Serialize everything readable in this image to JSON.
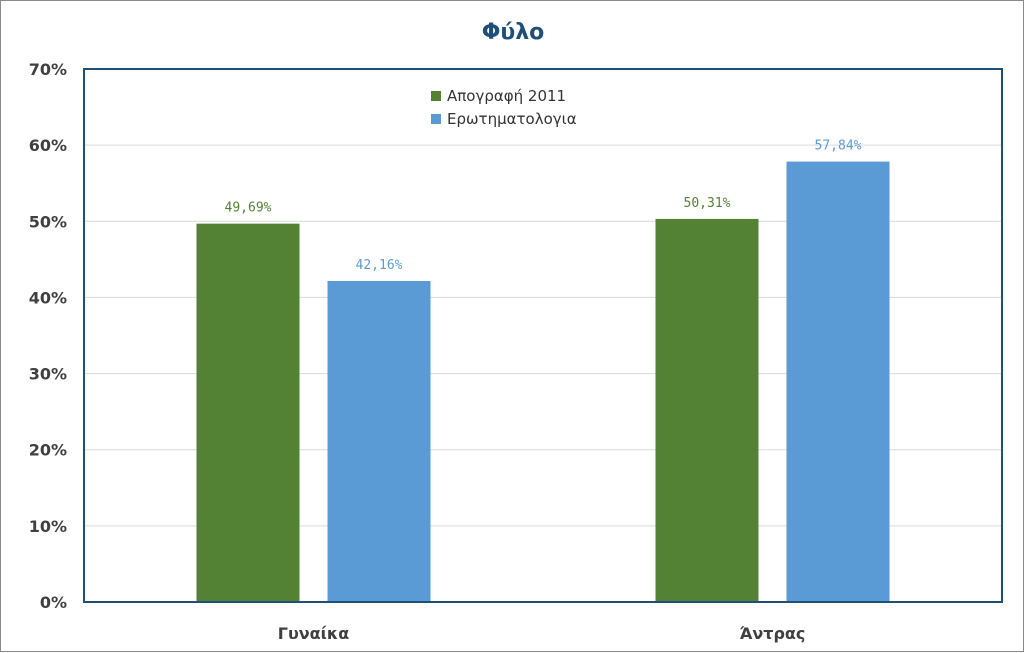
{
  "chart_data": {
    "type": "bar",
    "title": "Φύλο",
    "title_color": "#1f4e79",
    "categories": [
      "Γυναίκα",
      "Άντρας"
    ],
    "series": [
      {
        "name": "Απογραφή 2011",
        "values": [
          49.69,
          50.31
        ],
        "labels": [
          "49,69%",
          "50,31%"
        ],
        "color": "#548235"
      },
      {
        "name": "Ερωτηματολογια",
        "values": [
          42.16,
          57.84
        ],
        "labels": [
          "42,16%",
          "57,84%"
        ],
        "color": "#5b9bd5"
      }
    ],
    "y_ticks": [
      "0%",
      "10%",
      "20%",
      "30%",
      "40%",
      "50%",
      "60%",
      "70%"
    ],
    "ylim": [
      0,
      70
    ],
    "grid": true,
    "legend_position": "top-center",
    "plot_border_color": "#1f4e79"
  }
}
